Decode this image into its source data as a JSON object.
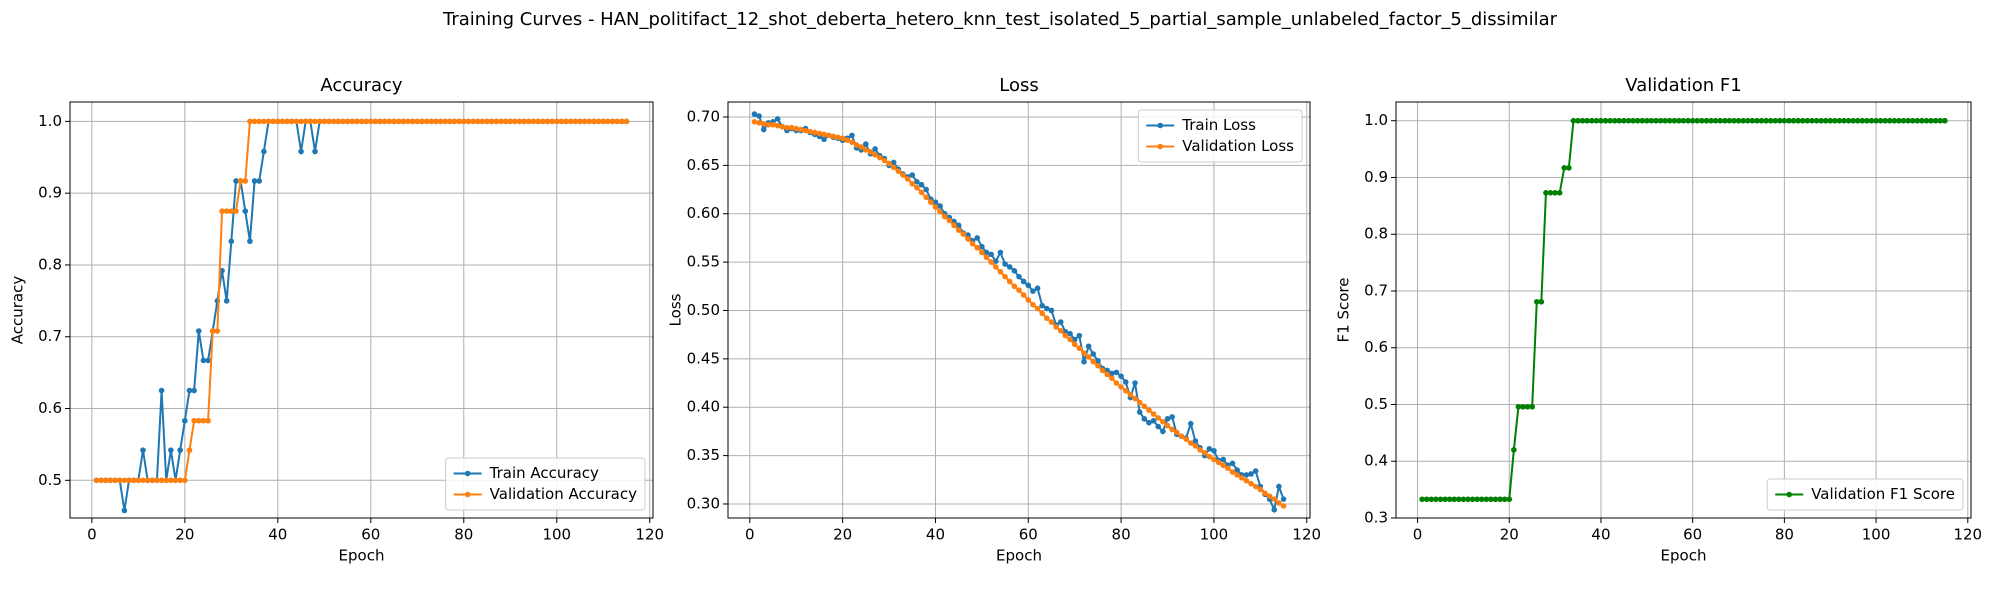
{
  "title": "Training Curves - HAN_politifact_12_shot_deberta_hetero_knn_test_isolated_5_partial_sample_unlabeled_factor_5_dissimilar",
  "chart_data": [
    {
      "type": "line",
      "title": "Accuracy",
      "xlabel": "Epoch",
      "ylabel": "Accuracy",
      "grid": true,
      "legend": "lower right",
      "x": [
        1,
        2,
        3,
        4,
        5,
        6,
        7,
        8,
        9,
        10,
        11,
        12,
        13,
        14,
        15,
        16,
        17,
        18,
        19,
        20,
        21,
        22,
        23,
        24,
        25,
        26,
        27,
        28,
        29,
        30,
        31,
        32,
        33,
        34,
        35,
        36,
        37,
        38,
        39,
        40,
        41,
        42,
        43,
        44,
        45,
        46,
        47,
        48,
        49,
        50,
        51,
        52,
        53,
        54,
        55,
        56,
        57,
        58,
        59,
        60,
        61,
        62,
        63,
        64,
        65,
        66,
        67,
        68,
        69,
        70,
        71,
        72,
        73,
        74,
        75,
        76,
        77,
        78,
        79,
        80,
        81,
        82,
        83,
        84,
        85,
        86,
        87,
        88,
        89,
        90,
        91,
        92,
        93,
        94,
        95,
        96,
        97,
        98,
        99,
        100,
        101,
        102,
        103,
        104,
        105,
        106,
        107,
        108,
        109,
        110,
        111,
        112,
        113,
        114,
        115
      ],
      "xlim": [
        -4.7,
        120.7
      ],
      "xticks": [
        0,
        20,
        40,
        60,
        80,
        100,
        120
      ],
      "ylim": [
        0.4475,
        1.027
      ],
      "yticks": [
        0.5,
        0.6,
        0.7,
        0.8,
        0.9,
        {
          "value": 1,
          "label": "1.0"
        }
      ],
      "series": [
        {
          "name": "Train Accuracy",
          "color": "#1f77b4",
          "values": [
            0.5,
            0.5,
            0.5,
            0.5,
            0.5,
            0.5,
            0.458,
            0.5,
            0.5,
            0.5,
            0.542,
            0.5,
            0.5,
            0.5,
            0.625,
            0.5,
            0.542,
            0.5,
            0.542,
            0.583,
            0.625,
            0.625,
            0.708,
            0.667,
            0.667,
            0.708,
            0.75,
            0.792,
            0.75,
            0.833,
            0.917,
            0.917,
            0.875,
            0.833,
            0.917,
            0.917,
            0.958,
            1,
            1,
            1,
            1,
            1,
            1,
            1,
            0.958,
            1,
            1,
            0.958,
            1,
            1,
            1,
            1,
            1,
            1,
            1,
            1,
            1,
            1,
            1,
            1,
            1,
            1,
            1,
            1,
            1,
            1,
            1,
            1,
            1,
            1,
            1,
            1,
            1,
            1,
            1,
            1,
            1,
            1,
            1,
            1,
            1,
            1,
            1,
            1,
            1,
            1,
            1,
            1,
            1,
            1,
            1,
            1,
            1,
            1,
            1,
            1,
            1,
            1,
            1,
            1,
            1,
            1,
            1,
            1,
            1,
            1,
            1,
            1,
            1,
            1,
            1,
            1,
            1,
            1,
            1
          ]
        },
        {
          "name": "Validation Accuracy",
          "color": "#ff7f0e",
          "values": [
            0.5,
            0.5,
            0.5,
            0.5,
            0.5,
            0.5,
            0.5,
            0.5,
            0.5,
            0.5,
            0.5,
            0.5,
            0.5,
            0.5,
            0.5,
            0.5,
            0.5,
            0.5,
            0.5,
            0.5,
            0.542,
            0.583,
            0.583,
            0.583,
            0.583,
            0.708,
            0.708,
            0.875,
            0.875,
            0.875,
            0.875,
            0.917,
            0.917,
            1,
            1,
            1,
            1,
            1,
            1,
            1,
            1,
            1,
            1,
            1,
            1,
            1,
            1,
            1,
            1,
            1,
            1,
            1,
            1,
            1,
            1,
            1,
            1,
            1,
            1,
            1,
            1,
            1,
            1,
            1,
            1,
            1,
            1,
            1,
            1,
            1,
            1,
            1,
            1,
            1,
            1,
            1,
            1,
            1,
            1,
            1,
            1,
            1,
            1,
            1,
            1,
            1,
            1,
            1,
            1,
            1,
            1,
            1,
            1,
            1,
            1,
            1,
            1,
            1,
            1,
            1,
            1,
            1,
            1,
            1,
            1,
            1,
            1,
            1,
            1,
            1,
            1,
            1,
            1,
            1,
            1
          ]
        }
      ]
    },
    {
      "type": "line",
      "title": "Loss",
      "xlabel": "Epoch",
      "ylabel": "Loss",
      "grid": true,
      "legend": "upper right",
      "x": [
        1,
        2,
        3,
        4,
        5,
        6,
        7,
        8,
        9,
        10,
        11,
        12,
        13,
        14,
        15,
        16,
        17,
        18,
        19,
        20,
        21,
        22,
        23,
        24,
        25,
        26,
        27,
        28,
        29,
        30,
        31,
        32,
        33,
        34,
        35,
        36,
        37,
        38,
        39,
        40,
        41,
        42,
        43,
        44,
        45,
        46,
        47,
        48,
        49,
        50,
        51,
        52,
        53,
        54,
        55,
        56,
        57,
        58,
        59,
        60,
        61,
        62,
        63,
        64,
        65,
        66,
        67,
        68,
        69,
        70,
        71,
        72,
        73,
        74,
        75,
        76,
        77,
        78,
        79,
        80,
        81,
        82,
        83,
        84,
        85,
        86,
        87,
        88,
        89,
        90,
        91,
        92,
        93,
        94,
        95,
        96,
        97,
        98,
        99,
        100,
        101,
        102,
        103,
        104,
        105,
        106,
        107,
        108,
        109,
        110,
        111,
        112,
        113,
        114,
        115
      ],
      "xlim": [
        -4.7,
        120.7
      ],
      "xticks": [
        0,
        20,
        40,
        60,
        80,
        100,
        120
      ],
      "ylim": [
        0.2855,
        0.7155
      ],
      "yticks": [
        {
          "value": 0.3,
          "label": "0.30"
        },
        0.35,
        {
          "value": 0.4,
          "label": "0.40"
        },
        0.45,
        {
          "value": 0.5,
          "label": "0.50"
        },
        0.55,
        {
          "value": 0.6,
          "label": "0.60"
        },
        0.65,
        {
          "value": 0.7,
          "label": "0.70"
        }
      ],
      "series": [
        {
          "name": "Train Loss",
          "color": "#1f77b4",
          "values": [
            0.703,
            0.701,
            0.687,
            0.694,
            0.695,
            0.698,
            0.69,
            0.686,
            0.688,
            0.686,
            0.686,
            0.688,
            0.684,
            0.682,
            0.68,
            0.677,
            0.681,
            0.679,
            0.678,
            0.676,
            0.678,
            0.681,
            0.668,
            0.666,
            0.672,
            0.662,
            0.667,
            0.66,
            0.657,
            0.65,
            0.653,
            0.646,
            0.641,
            0.638,
            0.64,
            0.633,
            0.63,
            0.625,
            0.615,
            0.612,
            0.608,
            0.6,
            0.596,
            0.592,
            0.588,
            0.58,
            0.578,
            0.572,
            0.575,
            0.566,
            0.56,
            0.558,
            0.551,
            0.56,
            0.548,
            0.545,
            0.541,
            0.535,
            0.53,
            0.526,
            0.52,
            0.523,
            0.505,
            0.502,
            0.5,
            0.485,
            0.488,
            0.478,
            0.476,
            0.47,
            0.474,
            0.447,
            0.463,
            0.455,
            0.448,
            0.44,
            0.438,
            0.435,
            0.436,
            0.432,
            0.426,
            0.41,
            0.425,
            0.395,
            0.388,
            0.384,
            0.386,
            0.38,
            0.375,
            0.388,
            0.39,
            0.372,
            0.37,
            0.368,
            0.383,
            0.365,
            0.358,
            0.35,
            0.357,
            0.355,
            0.345,
            0.346,
            0.34,
            0.342,
            0.335,
            0.33,
            0.33,
            0.331,
            0.334,
            0.318,
            0.31,
            0.305,
            0.294,
            0.318,
            0.305
          ]
        },
        {
          "name": "Validation Loss",
          "color": "#ff7f0e",
          "values": [
            0.695,
            0.694,
            0.693,
            0.692,
            0.692,
            0.691,
            0.69,
            0.689,
            0.689,
            0.688,
            0.687,
            0.686,
            0.685,
            0.684,
            0.683,
            0.682,
            0.681,
            0.68,
            0.679,
            0.678,
            0.676,
            0.674,
            0.671,
            0.669,
            0.666,
            0.664,
            0.661,
            0.658,
            0.655,
            0.652,
            0.648,
            0.644,
            0.64,
            0.636,
            0.631,
            0.627,
            0.622,
            0.617,
            0.612,
            0.607,
            0.602,
            0.597,
            0.593,
            0.588,
            0.583,
            0.579,
            0.574,
            0.569,
            0.565,
            0.56,
            0.555,
            0.55,
            0.545,
            0.54,
            0.535,
            0.53,
            0.525,
            0.521,
            0.516,
            0.511,
            0.506,
            0.502,
            0.497,
            0.492,
            0.488,
            0.483,
            0.479,
            0.474,
            0.47,
            0.465,
            0.461,
            0.456,
            0.452,
            0.447,
            0.443,
            0.438,
            0.434,
            0.43,
            0.425,
            0.421,
            0.417,
            0.413,
            0.409,
            0.405,
            0.401,
            0.397,
            0.393,
            0.389,
            0.385,
            0.381,
            0.377,
            0.374,
            0.37,
            0.367,
            0.363,
            0.36,
            0.356,
            0.353,
            0.349,
            0.346,
            0.343,
            0.34,
            0.337,
            0.333,
            0.33,
            0.327,
            0.324,
            0.321,
            0.318,
            0.315,
            0.311,
            0.308,
            0.305,
            0.301,
            0.298
          ]
        }
      ]
    },
    {
      "type": "line",
      "title": "Validation F1",
      "xlabel": "Epoch",
      "ylabel": "F1 Score",
      "grid": true,
      "legend": "lower right",
      "x": [
        1,
        2,
        3,
        4,
        5,
        6,
        7,
        8,
        9,
        10,
        11,
        12,
        13,
        14,
        15,
        16,
        17,
        18,
        19,
        20,
        21,
        22,
        23,
        24,
        25,
        26,
        27,
        28,
        29,
        30,
        31,
        32,
        33,
        34,
        35,
        36,
        37,
        38,
        39,
        40,
        41,
        42,
        43,
        44,
        45,
        46,
        47,
        48,
        49,
        50,
        51,
        52,
        53,
        54,
        55,
        56,
        57,
        58,
        59,
        60,
        61,
        62,
        63,
        64,
        65,
        66,
        67,
        68,
        69,
        70,
        71,
        72,
        73,
        74,
        75,
        76,
        77,
        78,
        79,
        80,
        81,
        82,
        83,
        84,
        85,
        86,
        87,
        88,
        89,
        90,
        91,
        92,
        93,
        94,
        95,
        96,
        97,
        98,
        99,
        100,
        101,
        102,
        103,
        104,
        105,
        106,
        107,
        108,
        109,
        110,
        111,
        112,
        113,
        114,
        115
      ],
      "xlim": [
        -4.7,
        120.7
      ],
      "xticks": [
        0,
        20,
        40,
        60,
        80,
        100,
        120
      ],
      "ylim": [
        0.3,
        1.033
      ],
      "yticks": [
        0.3,
        0.4,
        0.5,
        0.6,
        0.7,
        0.8,
        0.9,
        {
          "value": 1,
          "label": "1.0"
        }
      ],
      "series": [
        {
          "name": "Validation F1 Score",
          "color": "#008000",
          "values": [
            0.333,
            0.333,
            0.333,
            0.333,
            0.333,
            0.333,
            0.333,
            0.333,
            0.333,
            0.333,
            0.333,
            0.333,
            0.333,
            0.333,
            0.333,
            0.333,
            0.333,
            0.333,
            0.333,
            0.333,
            0.42,
            0.496,
            0.496,
            0.496,
            0.496,
            0.681,
            0.681,
            0.873,
            0.873,
            0.873,
            0.873,
            0.917,
            0.917,
            1,
            1,
            1,
            1,
            1,
            1,
            1,
            1,
            1,
            1,
            1,
            1,
            1,
            1,
            1,
            1,
            1,
            1,
            1,
            1,
            1,
            1,
            1,
            1,
            1,
            1,
            1,
            1,
            1,
            1,
            1,
            1,
            1,
            1,
            1,
            1,
            1,
            1,
            1,
            1,
            1,
            1,
            1,
            1,
            1,
            1,
            1,
            1,
            1,
            1,
            1,
            1,
            1,
            1,
            1,
            1,
            1,
            1,
            1,
            1,
            1,
            1,
            1,
            1,
            1,
            1,
            1,
            1,
            1,
            1,
            1,
            1,
            1,
            1,
            1,
            1,
            1,
            1,
            1,
            1,
            1,
            1
          ]
        }
      ]
    }
  ]
}
